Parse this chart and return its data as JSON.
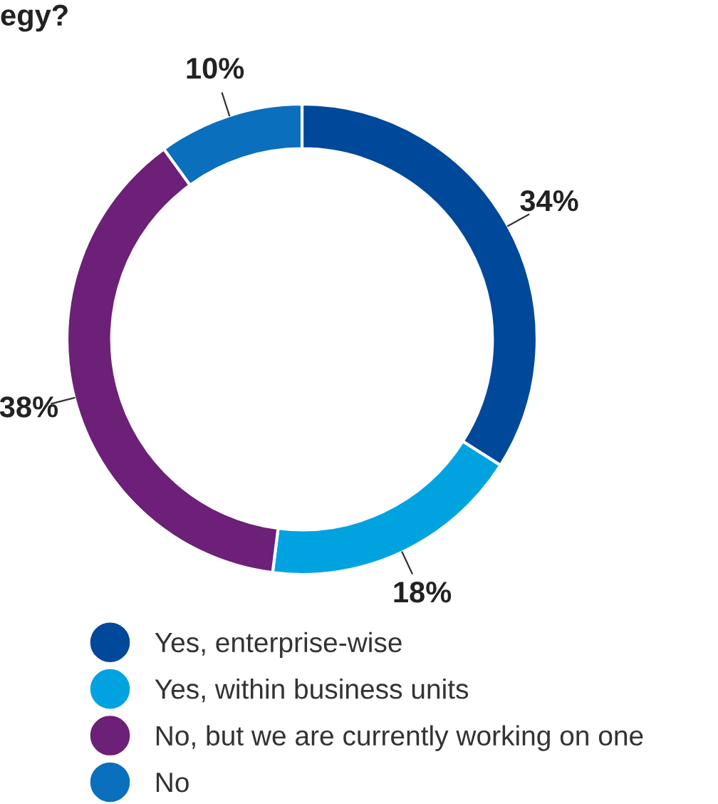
{
  "chart_data": {
    "type": "donut",
    "title": "egy?",
    "categories": [
      "Yes, enterprise-wise",
      "Yes, within business units",
      "No, but we are currently working on one",
      "No"
    ],
    "values": [
      34,
      18,
      38,
      10
    ],
    "colors": [
      "#00489a",
      "#00a3e0",
      "#6d2077",
      "#0a6fbd"
    ],
    "value_labels": [
      "34%",
      "18%",
      "38%",
      "10%"
    ],
    "legend": "bottom"
  }
}
